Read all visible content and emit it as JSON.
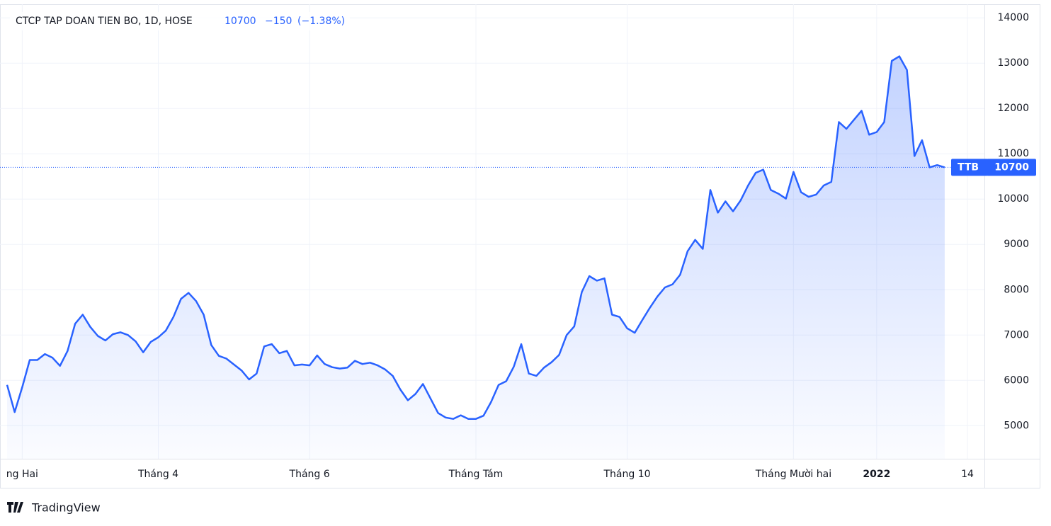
{
  "chart_data": {
    "type": "area",
    "title": "CTCP TAP DOAN TIEN BO, 1D, HOSE",
    "last": 10700,
    "change": {
      "value": -150,
      "label": "−150"
    },
    "change_pct": {
      "value": -1.38,
      "label": "(−1.38%)"
    },
    "symbol": "TTB",
    "categories": [
      null,
      null,
      "ng Hai",
      null,
      null,
      null,
      null,
      null,
      null,
      null,
      null,
      null,
      null,
      null,
      null,
      null,
      null,
      null,
      null,
      null,
      "Tháng 4",
      null,
      null,
      null,
      null,
      null,
      null,
      null,
      null,
      null,
      null,
      null,
      null,
      null,
      null,
      null,
      null,
      null,
      null,
      null,
      "Tháng 6",
      null,
      null,
      null,
      null,
      null,
      null,
      null,
      null,
      null,
      null,
      null,
      null,
      null,
      null,
      null,
      null,
      null,
      null,
      null,
      null,
      null,
      "Tháng Tám",
      null,
      null,
      null,
      null,
      null,
      null,
      null,
      null,
      null,
      null,
      null,
      null,
      null,
      null,
      null,
      null,
      null,
      null,
      null,
      "Tháng 10",
      null,
      null,
      null,
      null,
      null,
      null,
      null,
      null,
      null,
      null,
      null,
      null,
      null,
      null,
      null,
      null,
      null,
      null,
      null,
      null,
      null,
      "Tháng Mười hai",
      null,
      null,
      null,
      null,
      null,
      null,
      null,
      null,
      null,
      null,
      "2022",
      null,
      null,
      null,
      null,
      null,
      null,
      null,
      null,
      null,
      null,
      null,
      "14"
    ],
    "series": [
      {
        "name": "TTB",
        "color": "#2962ff",
        "values": [
          5900,
          5300,
          5850,
          6450,
          6450,
          6580,
          6500,
          6320,
          6650,
          7250,
          7450,
          7180,
          6980,
          6880,
          7020,
          7060,
          7000,
          6860,
          6620,
          6850,
          6950,
          7100,
          7400,
          7800,
          7930,
          7750,
          7450,
          6780,
          6540,
          6480,
          6350,
          6220,
          6020,
          6150,
          6750,
          6800,
          6600,
          6650,
          6330,
          6350,
          6330,
          6550,
          6360,
          6290,
          6260,
          6280,
          6430,
          6360,
          6390,
          6330,
          6240,
          6100,
          5800,
          5560,
          5700,
          5920,
          5600,
          5280,
          5180,
          5150,
          5230,
          5150,
          5150,
          5220,
          5520,
          5900,
          5980,
          6300,
          6800,
          6150,
          6100,
          6280,
          6400,
          6560,
          7000,
          7190,
          7950,
          8300,
          8200,
          8250,
          7450,
          7400,
          7150,
          7050,
          7330,
          7600,
          7850,
          8050,
          8120,
          8330,
          8850,
          9100,
          8900,
          10200,
          9700,
          9950,
          9730,
          9970,
          10300,
          10580,
          10650,
          10200,
          10120,
          10010,
          10600,
          10150,
          10050,
          10100,
          10300,
          10380,
          11700,
          11550,
          11750,
          11950,
          11420,
          11480,
          11700,
          13050,
          13150,
          12850,
          10950,
          11300,
          10700,
          10750,
          10700,
          null,
          null,
          null
        ]
      }
    ],
    "ylim": [
      4270,
      14300
    ],
    "yticks": [
      5000,
      6000,
      7000,
      8000,
      9000,
      10000,
      11000,
      12000,
      13000,
      14000
    ],
    "grid": true
  },
  "branding": "TradingView"
}
